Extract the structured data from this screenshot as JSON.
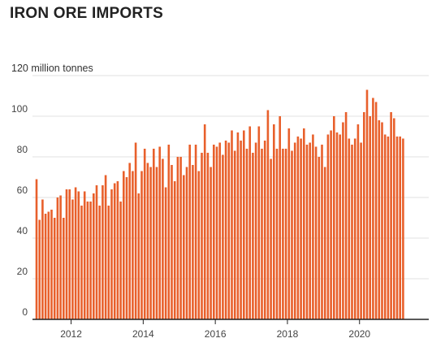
{
  "title": "IRON ORE IMPORTS",
  "chart_data": {
    "type": "bar",
    "title": "IRON ORE IMPORTS",
    "ylabel": "million tonnes",
    "y_unit_label": "120 million tonnes",
    "ylim": [
      0,
      120
    ],
    "yticks": [
      "0",
      "20",
      "40",
      "60",
      "80",
      "100"
    ],
    "x_tick_labels": [
      "2012",
      "2014",
      "2016",
      "2018",
      "2020"
    ],
    "x_start": "2011-01",
    "x_end": "2021-07",
    "grid": true,
    "bar_color": "#e8602c",
    "values": [
      69,
      49,
      59,
      52,
      53,
      54,
      50,
      60,
      61,
      50,
      64,
      64,
      59,
      65,
      63,
      56,
      63,
      58,
      58,
      62,
      66,
      56,
      66,
      71,
      56,
      64,
      67,
      68,
      58,
      73,
      70,
      77,
      73,
      87,
      62,
      73,
      84,
      77,
      75,
      84,
      75,
      85,
      79,
      65,
      86,
      76,
      68,
      80,
      80,
      71,
      75,
      86,
      76,
      86,
      73,
      82,
      96,
      82,
      75,
      86,
      85,
      87,
      81,
      88,
      87,
      93,
      83,
      92,
      88,
      93,
      84,
      95,
      82,
      87,
      95,
      84,
      88,
      103,
      79,
      96,
      84,
      100,
      84,
      84,
      94,
      83,
      87,
      90,
      89,
      94,
      86,
      87,
      91,
      85,
      80,
      86,
      75,
      91,
      93,
      100,
      92,
      91,
      97,
      102,
      89,
      86,
      89,
      96,
      87,
      102,
      113,
      100,
      109,
      107,
      98,
      97,
      91,
      90,
      102,
      99,
      90,
      90,
      89
    ]
  }
}
